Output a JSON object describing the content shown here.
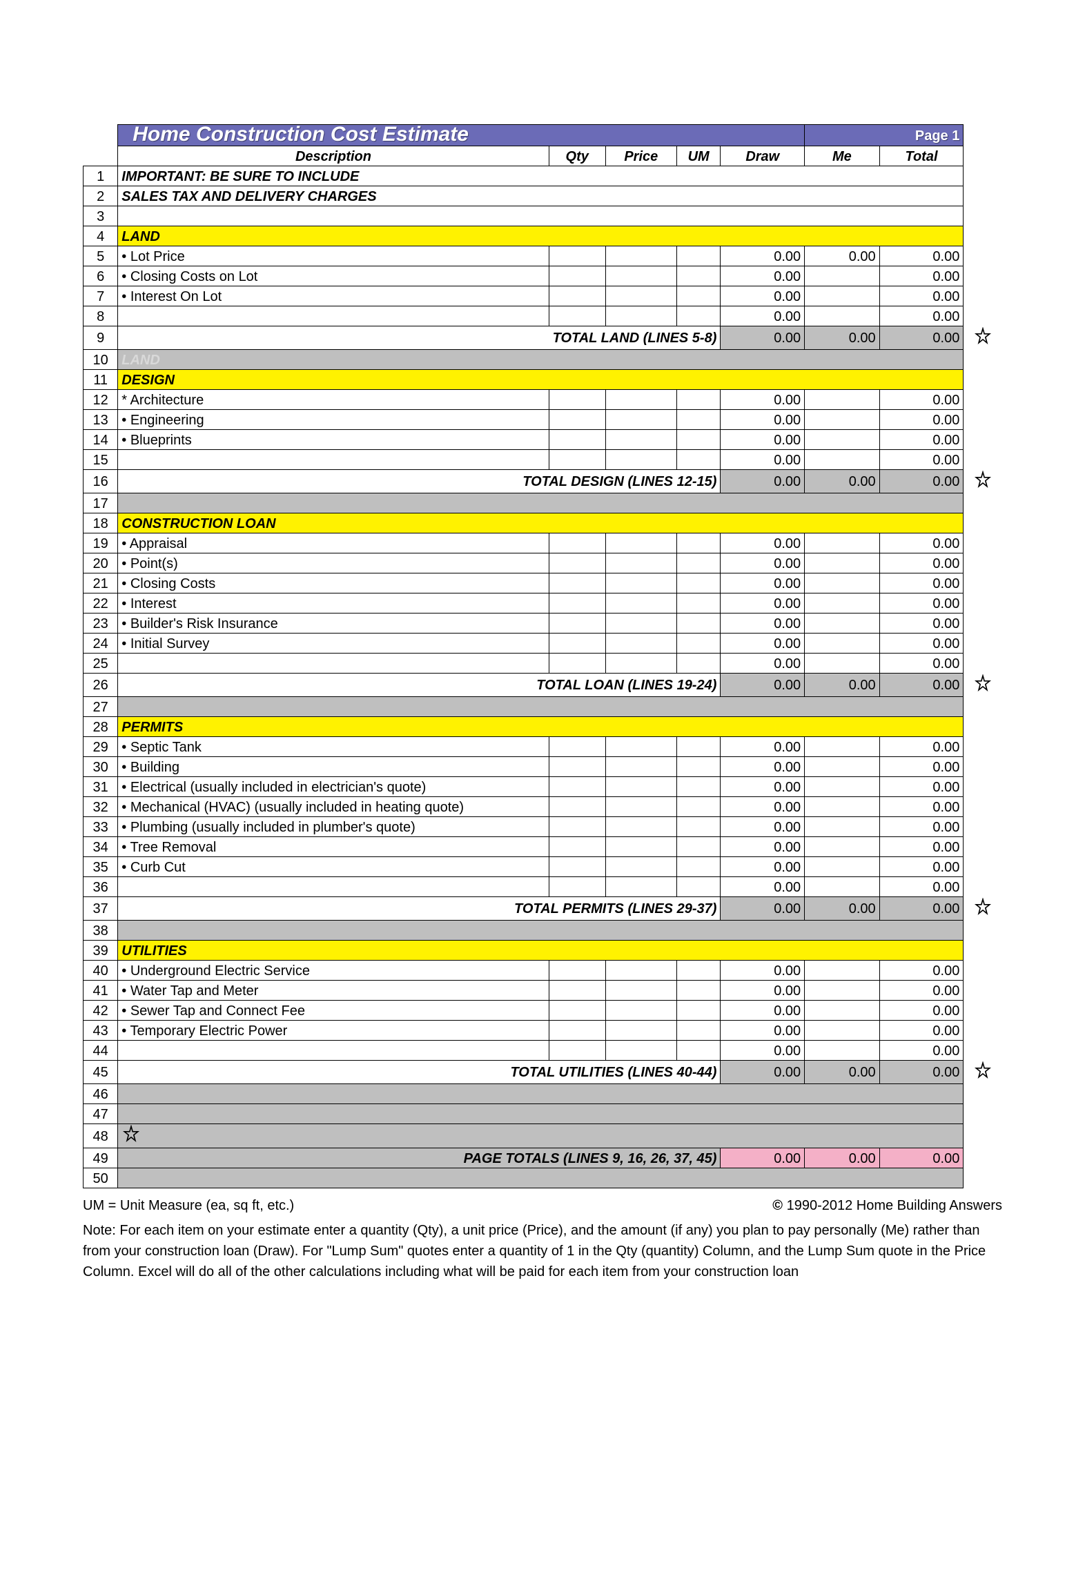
{
  "title": "Home Construction Cost Estimate",
  "page_label": "Page 1",
  "columns": [
    "Description",
    "Qty",
    "Price",
    "UM",
    "Draw",
    "Me",
    "Total"
  ],
  "colors": {
    "title_bg": "#6b6bb7",
    "section_bg": "#fff200",
    "grey_bg": "#bfbfbf",
    "pink_bg": "#f4b0c7",
    "border": "#000000",
    "background": "#ffffff"
  },
  "rows": [
    {
      "n": 1,
      "type": "bold",
      "desc": "IMPORTANT:  BE SURE TO INCLUDE"
    },
    {
      "n": 2,
      "type": "bold",
      "desc": "SALES TAX AND DELIVERY CHARGES"
    },
    {
      "n": 3,
      "type": "blank"
    },
    {
      "n": 4,
      "type": "section",
      "desc": "LAND"
    },
    {
      "n": 5,
      "type": "item",
      "desc": "• Lot Price",
      "draw": "0.00",
      "me": "0.00",
      "total": "0.00"
    },
    {
      "n": 6,
      "type": "item",
      "desc": "• Closing Costs on Lot",
      "draw": "0.00",
      "me": "",
      "total": "0.00"
    },
    {
      "n": 7,
      "type": "item",
      "desc": "• Interest On Lot",
      "draw": "0.00",
      "me": "",
      "total": "0.00"
    },
    {
      "n": 8,
      "type": "item",
      "desc": "",
      "draw": "0.00",
      "me": "",
      "total": "0.00"
    },
    {
      "n": 9,
      "type": "total",
      "desc": "TOTAL LAND (LINES 5-8)",
      "draw": "0.00",
      "me": "0.00",
      "total": "0.00",
      "star": true
    },
    {
      "n": 10,
      "type": "greyland",
      "desc": "LAND"
    },
    {
      "n": 11,
      "type": "section",
      "desc": "DESIGN"
    },
    {
      "n": 12,
      "type": "item",
      "desc": "* Architecture",
      "draw": "0.00",
      "me": "",
      "total": "0.00"
    },
    {
      "n": 13,
      "type": "item",
      "desc": "• Engineering",
      "draw": "0.00",
      "me": "",
      "total": "0.00"
    },
    {
      "n": 14,
      "type": "item",
      "desc": "• Blueprints",
      "draw": "0.00",
      "me": "",
      "total": "0.00"
    },
    {
      "n": 15,
      "type": "item",
      "desc": "",
      "draw": "0.00",
      "me": "",
      "total": "0.00"
    },
    {
      "n": 16,
      "type": "total",
      "desc": "TOTAL DESIGN (LINES  12-15)",
      "draw": "0.00",
      "me": "0.00",
      "total": "0.00",
      "star": true
    },
    {
      "n": 17,
      "type": "grey"
    },
    {
      "n": 18,
      "type": "section",
      "desc": "CONSTRUCTION LOAN"
    },
    {
      "n": 19,
      "type": "item",
      "desc": "• Appraisal",
      "draw": "0.00",
      "me": "",
      "total": "0.00"
    },
    {
      "n": 20,
      "type": "item",
      "desc": "• Point(s)",
      "draw": "0.00",
      "me": "",
      "total": "0.00"
    },
    {
      "n": 21,
      "type": "item",
      "desc": "• Closing Costs",
      "draw": "0.00",
      "me": "",
      "total": "0.00"
    },
    {
      "n": 22,
      "type": "item",
      "desc": "• Interest",
      "draw": "0.00",
      "me": "",
      "total": "0.00"
    },
    {
      "n": 23,
      "type": "item",
      "desc": "• Builder's Risk Insurance",
      "draw": "0.00",
      "me": "",
      "total": "0.00"
    },
    {
      "n": 24,
      "type": "item",
      "desc": "• Initial Survey",
      "draw": "0.00",
      "me": "",
      "total": "0.00"
    },
    {
      "n": 25,
      "type": "item",
      "desc": "",
      "draw": "0.00",
      "me": "",
      "total": "0.00"
    },
    {
      "n": 26,
      "type": "total",
      "desc": "TOTAL LOAN (LINES 19-24)",
      "draw": "0.00",
      "me": "0.00",
      "total": "0.00",
      "star": true
    },
    {
      "n": 27,
      "type": "grey"
    },
    {
      "n": 28,
      "type": "section",
      "desc": "PERMITS"
    },
    {
      "n": 29,
      "type": "item",
      "desc": "• Septic Tank",
      "draw": "0.00",
      "me": "",
      "total": "0.00"
    },
    {
      "n": 30,
      "type": "item",
      "desc": "• Building",
      "draw": "0.00",
      "me": "",
      "total": "0.00"
    },
    {
      "n": 31,
      "type": "item",
      "desc": "• Electrical (usually included in electrician's quote)",
      "draw": "0.00",
      "me": "",
      "total": "0.00"
    },
    {
      "n": 32,
      "type": "item",
      "desc": "• Mechanical (HVAC) (usually included in heating quote)",
      "draw": "0.00",
      "me": "",
      "total": "0.00"
    },
    {
      "n": 33,
      "type": "item",
      "desc": "• Plumbing (usually included in plumber's quote)",
      "draw": "0.00",
      "me": "",
      "total": "0.00"
    },
    {
      "n": 34,
      "type": "item",
      "desc": "• Tree Removal",
      "draw": "0.00",
      "me": "",
      "total": "0.00"
    },
    {
      "n": 35,
      "type": "item",
      "desc": "• Curb Cut",
      "draw": "0.00",
      "me": "",
      "total": "0.00"
    },
    {
      "n": 36,
      "type": "item",
      "desc": "",
      "draw": "0.00",
      "me": "",
      "total": "0.00"
    },
    {
      "n": 37,
      "type": "total",
      "desc": "TOTAL PERMITS (LINES 29-37)",
      "draw": "0.00",
      "me": "0.00",
      "total": "0.00",
      "star": true
    },
    {
      "n": 38,
      "type": "grey"
    },
    {
      "n": 39,
      "type": "section",
      "desc": "UTILITIES"
    },
    {
      "n": 40,
      "type": "item",
      "desc": "• Underground Electric Service",
      "draw": "0.00",
      "me": "",
      "total": "0.00"
    },
    {
      "n": 41,
      "type": "item",
      "desc": "• Water Tap and Meter",
      "draw": "0.00",
      "me": "",
      "total": "0.00"
    },
    {
      "n": 42,
      "type": "item",
      "desc": "• Sewer Tap and Connect Fee",
      "draw": "0.00",
      "me": "",
      "total": "0.00"
    },
    {
      "n": 43,
      "type": "item",
      "desc": "• Temporary Electric Power",
      "draw": "0.00",
      "me": "",
      "total": "0.00"
    },
    {
      "n": 44,
      "type": "item",
      "desc": "",
      "draw": "0.00",
      "me": "",
      "total": "0.00"
    },
    {
      "n": 45,
      "type": "total",
      "desc": "TOTAL UTILITIES (LINES 40-44)",
      "draw": "0.00",
      "me": "0.00",
      "total": "0.00",
      "star": true
    },
    {
      "n": 46,
      "type": "grey"
    },
    {
      "n": 47,
      "type": "grey"
    },
    {
      "n": 48,
      "type": "greystar"
    },
    {
      "n": 49,
      "type": "pagetotal",
      "desc": "PAGE TOTALS (LINES 9, 16, 26, 37, 45)",
      "draw": "0.00",
      "me": "0.00",
      "total": "0.00"
    },
    {
      "n": 50,
      "type": "grey"
    }
  ],
  "footer": {
    "um": "UM = Unit Measure (ea, sq ft, etc.)",
    "copyright": "1990-2012 Home Building Answers",
    "note": "Note: For each item on your estimate enter a quantity (Qty), a unit price (Price), and the amount (if any) you plan to pay personally (Me) rather than from your construction loan (Draw). For \"Lump Sum\" quotes enter a quantity of 1 in the Qty (quantity) Column, and the Lump Sum quote in the Price Column.  Excel will do all of the other calculations including what will be paid for each item from your construction loan"
  }
}
